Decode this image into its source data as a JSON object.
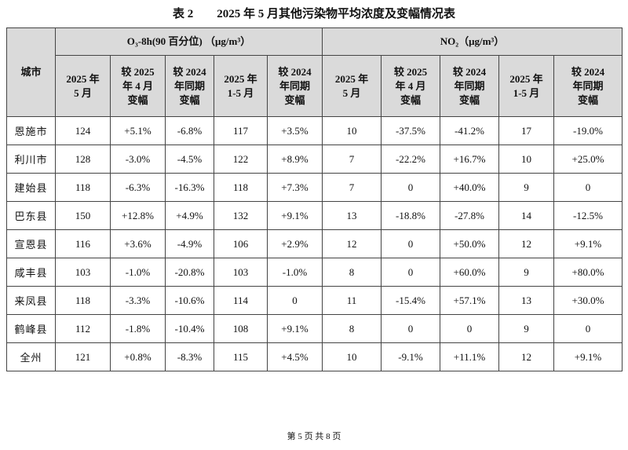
{
  "title": "表 2　　2025 年 5 月其他污染物平均浓度及变幅情况表",
  "table": {
    "city_header": "城市",
    "groups": [
      "O₃-8h(90 百分位) （μg/m³）",
      "NO₂（μg/m³）"
    ],
    "columns": [
      [
        "2025 年",
        "5 月"
      ],
      [
        "较 2025",
        "年 4 月",
        "变幅"
      ],
      [
        "较 2024",
        "年同期",
        "变幅"
      ],
      [
        "2025 年",
        "1-5 月"
      ],
      [
        "较 2024",
        "年同期",
        "变幅"
      ],
      [
        "2025 年",
        "5 月"
      ],
      [
        "较 2025",
        "年 4 月",
        "变幅"
      ],
      [
        "较 2024",
        "年同期",
        "变幅"
      ],
      [
        "2025 年",
        "1-5 月"
      ],
      [
        "较 2024",
        "年同期",
        "变幅"
      ]
    ],
    "rows": [
      [
        "恩施市",
        "124",
        "+5.1%",
        "-6.8%",
        "117",
        "+3.5%",
        "10",
        "-37.5%",
        "-41.2%",
        "17",
        "-19.0%"
      ],
      [
        "利川市",
        "128",
        "-3.0%",
        "-4.5%",
        "122",
        "+8.9%",
        "7",
        "-22.2%",
        "+16.7%",
        "10",
        "+25.0%"
      ],
      [
        "建始县",
        "118",
        "-6.3%",
        "-16.3%",
        "118",
        "+7.3%",
        "7",
        "0",
        "+40.0%",
        "9",
        "0"
      ],
      [
        "巴东县",
        "150",
        "+12.8%",
        "+4.9%",
        "132",
        "+9.1%",
        "13",
        "-18.8%",
        "-27.8%",
        "14",
        "-12.5%"
      ],
      [
        "宣恩县",
        "116",
        "+3.6%",
        "-4.9%",
        "106",
        "+2.9%",
        "12",
        "0",
        "+50.0%",
        "12",
        "+9.1%"
      ],
      [
        "咸丰县",
        "103",
        "-1.0%",
        "-20.8%",
        "103",
        "-1.0%",
        "8",
        "0",
        "+60.0%",
        "9",
        "+80.0%"
      ],
      [
        "来凤县",
        "118",
        "-3.3%",
        "-10.6%",
        "114",
        "0",
        "11",
        "-15.4%",
        "+57.1%",
        "13",
        "+30.0%"
      ],
      [
        "鹤峰县",
        "112",
        "-1.8%",
        "-10.4%",
        "108",
        "+9.1%",
        "8",
        "0",
        "0",
        "9",
        "0"
      ],
      [
        "全州",
        "121",
        "+0.8%",
        "-8.3%",
        "115",
        "+4.5%",
        "10",
        "-9.1%",
        "+11.1%",
        "12",
        "+9.1%"
      ]
    ]
  },
  "footer": "第 5 页 共 8 页"
}
